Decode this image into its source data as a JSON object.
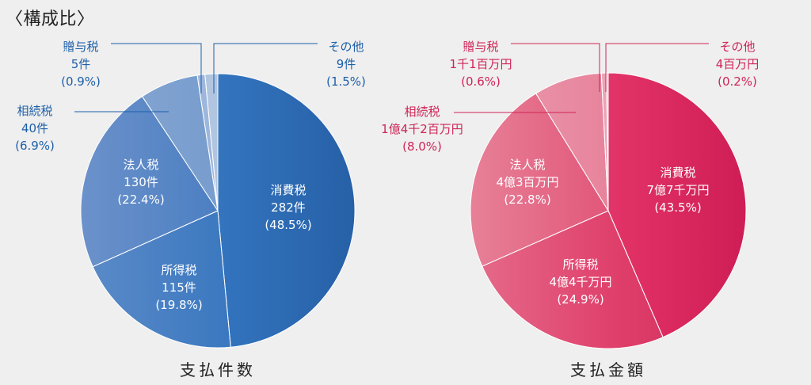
{
  "header": {
    "title": "〈構成比〉"
  },
  "chart_data": [
    {
      "type": "pie",
      "title": "支払件数",
      "slices": [
        {
          "name": "消費税",
          "value_label": "282件",
          "percent": 48.5,
          "percent_label": "(48.5%)"
        },
        {
          "name": "所得税",
          "value_label": "115件",
          "percent": 19.8,
          "percent_label": "(19.8%)"
        },
        {
          "name": "法人税",
          "value_label": "130件",
          "percent": 22.4,
          "percent_label": "(22.4%)"
        },
        {
          "name": "相続税",
          "value_label": "40件",
          "percent": 6.9,
          "percent_label": "(6.9%)"
        },
        {
          "name": "贈与税",
          "value_label": "5件",
          "percent": 0.9,
          "percent_label": "(0.9%)"
        },
        {
          "name": "その他",
          "value_label": "9件",
          "percent": 1.5,
          "percent_label": "(1.5%)"
        }
      ],
      "colors": [
        "#2b6fba",
        "#3a78c0",
        "#5583c2",
        "#8aa8d2",
        "#b9c9e4",
        "#d6dee9"
      ],
      "label_color": "#1d5fa8"
    },
    {
      "type": "pie",
      "title": "支払金額",
      "slices": [
        {
          "name": "消費税",
          "value_label": "7億7千万円",
          "percent": 43.5,
          "percent_label": "(43.5%)"
        },
        {
          "name": "所得税",
          "value_label": "4億4千万円",
          "percent": 24.9,
          "percent_label": "(24.9%)"
        },
        {
          "name": "法人税",
          "value_label": "4億3百万円",
          "percent": 22.8,
          "percent_label": "(22.8%)"
        },
        {
          "name": "相続税",
          "value_label": "1億4千2百万円",
          "percent": 8.0,
          "percent_label": "(8.0%)"
        },
        {
          "name": "贈与税",
          "value_label": "1千1百万円",
          "percent": 0.6,
          "percent_label": "(0.6%)"
        },
        {
          "name": "その他",
          "value_label": "4百万円",
          "percent": 0.2,
          "percent_label": "(0.2%)"
        }
      ],
      "colors": [
        "#e0245e",
        "#dd3b66",
        "#e0607e",
        "#e897a9",
        "#efc0cb",
        "#f3dbe1"
      ],
      "label_color": "#cf2457"
    }
  ]
}
